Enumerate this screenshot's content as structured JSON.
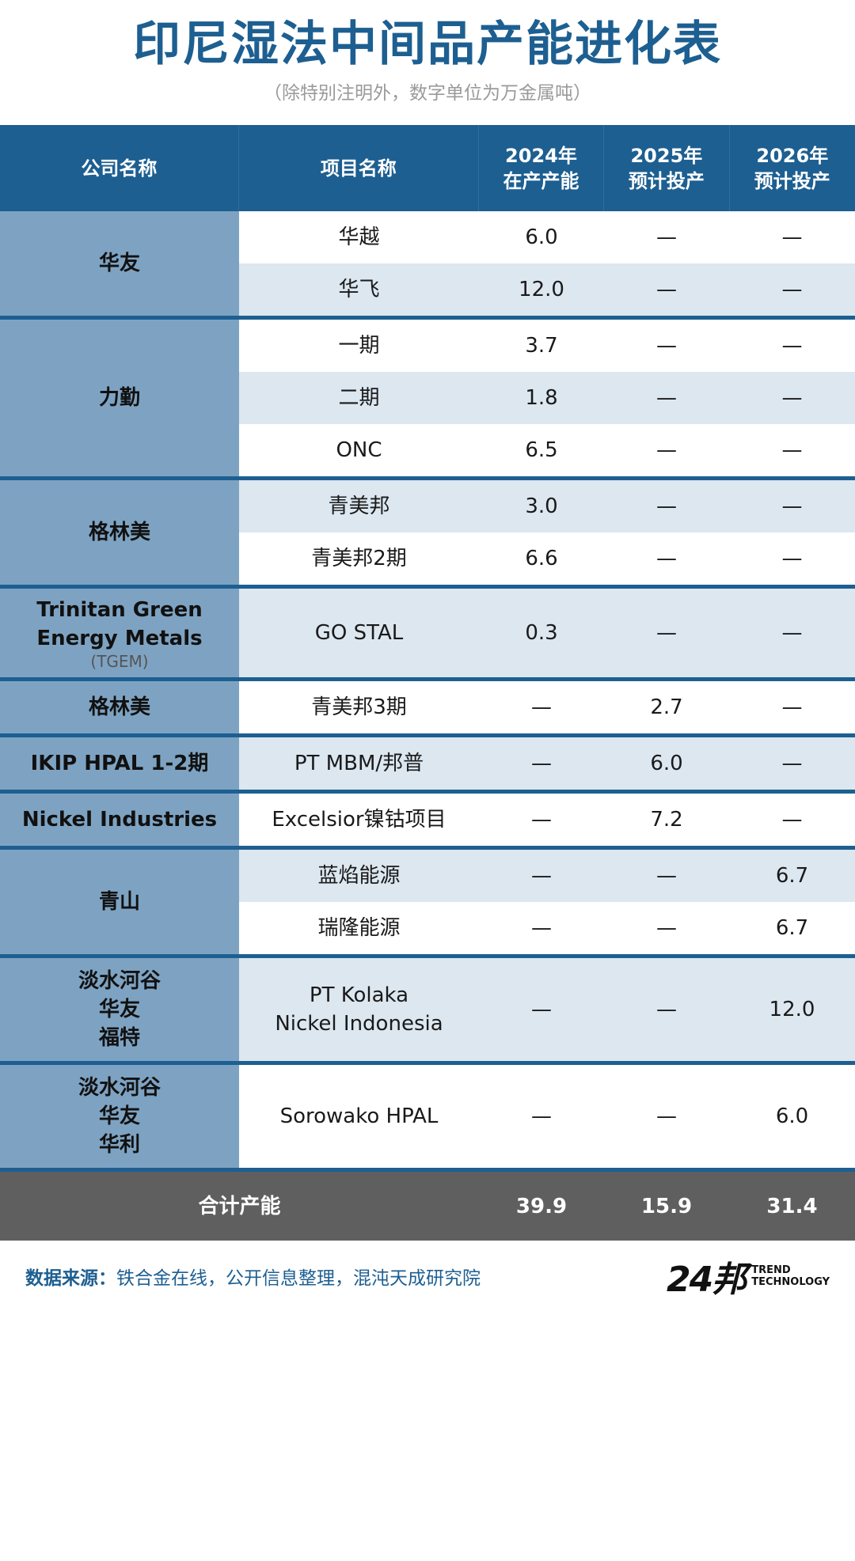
{
  "title": "印尼湿法中间品产能进化表",
  "subtitle": "（除特别注明外，数字单位为万金属吨）",
  "headers": {
    "company": "公司名称",
    "project": "项目名称",
    "y2024_line1": "2024年",
    "y2024_line2": "在产产能",
    "y2025_line1": "2025年",
    "y2025_line2": "预计投产",
    "y2026_line1": "2026年",
    "y2026_line2": "预计投产"
  },
  "groups": [
    {
      "company": [
        "华友"
      ],
      "rows": [
        {
          "project": [
            "华越"
          ],
          "v2024": "6.0",
          "v2025": "—",
          "v2026": "—"
        },
        {
          "project": [
            "华飞"
          ],
          "v2024": "12.0",
          "v2025": "—",
          "v2026": "—"
        }
      ]
    },
    {
      "company": [
        "力勤"
      ],
      "rows": [
        {
          "project": [
            "一期"
          ],
          "v2024": "3.7",
          "v2025": "—",
          "v2026": "—"
        },
        {
          "project": [
            "二期"
          ],
          "v2024": "1.8",
          "v2025": "—",
          "v2026": "—"
        },
        {
          "project": [
            "ONC"
          ],
          "v2024": "6.5",
          "v2025": "—",
          "v2026": "—"
        }
      ]
    },
    {
      "company": [
        "格林美"
      ],
      "rows": [
        {
          "project": [
            "青美邦"
          ],
          "v2024": "3.0",
          "v2025": "—",
          "v2026": "—"
        },
        {
          "project": [
            "青美邦2期"
          ],
          "v2024": "6.6",
          "v2025": "—",
          "v2026": "—"
        }
      ]
    },
    {
      "company": [
        "Trinitan Green",
        "Energy Metals"
      ],
      "company_sub": "(TGEM)",
      "rows": [
        {
          "project": [
            "GO STAL"
          ],
          "v2024": "0.3",
          "v2025": "—",
          "v2026": "—"
        }
      ]
    },
    {
      "company": [
        "格林美"
      ],
      "rows": [
        {
          "project": [
            "青美邦3期"
          ],
          "v2024": "—",
          "v2025": "2.7",
          "v2026": "—"
        }
      ]
    },
    {
      "company": [
        "IKIP HPAL 1-2期"
      ],
      "rows": [
        {
          "project": [
            "PT MBM/邦普"
          ],
          "v2024": "—",
          "v2025": "6.0",
          "v2026": "—"
        }
      ]
    },
    {
      "company": [
        "Nickel Industries"
      ],
      "rows": [
        {
          "project": [
            "Excelsior镍钴项目"
          ],
          "v2024": "—",
          "v2025": "7.2",
          "v2026": "—"
        }
      ]
    },
    {
      "company": [
        "青山"
      ],
      "rows": [
        {
          "project": [
            "蓝焰能源"
          ],
          "v2024": "—",
          "v2025": "—",
          "v2026": "6.7"
        },
        {
          "project": [
            "瑞隆能源"
          ],
          "v2024": "—",
          "v2025": "—",
          "v2026": "6.7"
        }
      ]
    },
    {
      "company": [
        "淡水河谷",
        "华友",
        "福特"
      ],
      "rows": [
        {
          "project": [
            "PT Kolaka",
            "Nickel Indonesia"
          ],
          "v2024": "—",
          "v2025": "—",
          "v2026": "12.0"
        }
      ]
    },
    {
      "company": [
        "淡水河谷",
        "华友",
        "华利"
      ],
      "rows": [
        {
          "project": [
            "Sorowako HPAL"
          ],
          "v2024": "—",
          "v2025": "—",
          "v2026": "6.0"
        }
      ]
    }
  ],
  "total": {
    "label": "合计产能",
    "v2024": "39.9",
    "v2025": "15.9",
    "v2026": "31.4"
  },
  "footer": {
    "source_label": "数据来源：",
    "source_text": "铁合金在线，公开信息整理，混沌天成研究院",
    "logo_mark": "24邦",
    "logo_line1": "TREND",
    "logo_line2": "TECHNOLOGY"
  }
}
